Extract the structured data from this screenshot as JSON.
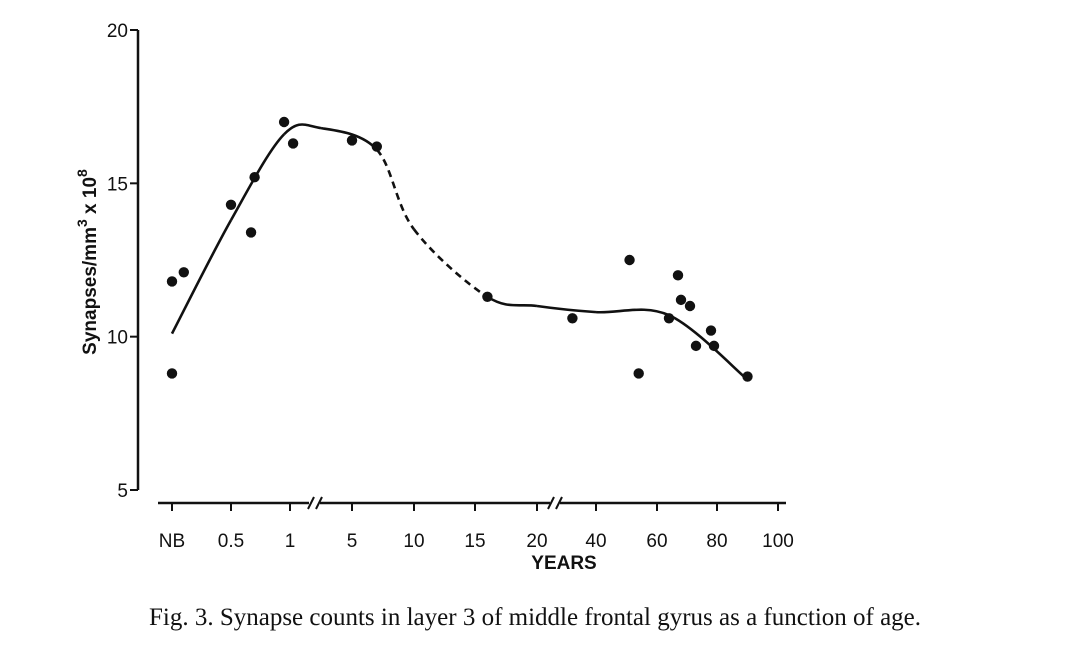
{
  "chart_data": {
    "type": "scatter",
    "ylabel_parts": {
      "base": "Synapses/mm",
      "exp1": "3",
      "mid": " x 10",
      "exp2": "8"
    },
    "xlabel": "YEARS",
    "ylim": [
      5,
      20
    ],
    "yticks": [
      5,
      10,
      15,
      20
    ],
    "x_axis_breaks": [
      "between 1 and 5",
      "between 20 and 40"
    ],
    "xticks": [
      "NB",
      "0.5",
      "1",
      "5",
      "10",
      "15",
      "20",
      "40",
      "60",
      "80",
      "100"
    ],
    "points": [
      {
        "x": "NB",
        "y": 8.8
      },
      {
        "x": "NB",
        "y": 11.8
      },
      {
        "x": 0.1,
        "y": 12.1
      },
      {
        "x": 0.5,
        "y": 14.3
      },
      {
        "x": 0.67,
        "y": 13.4
      },
      {
        "x": 0.7,
        "y": 15.2
      },
      {
        "x": 0.95,
        "y": 17.0
      },
      {
        "x": 1.2,
        "y": 16.3
      },
      {
        "x": 5,
        "y": 16.4
      },
      {
        "x": 7,
        "y": 16.2
      },
      {
        "x": 16,
        "y": 11.3
      },
      {
        "x": 32,
        "y": 10.6
      },
      {
        "x": 51,
        "y": 12.5
      },
      {
        "x": 54,
        "y": 8.8
      },
      {
        "x": 64,
        "y": 10.6
      },
      {
        "x": 67,
        "y": 12.0
      },
      {
        "x": 68,
        "y": 11.2
      },
      {
        "x": 71,
        "y": 11.0
      },
      {
        "x": 73,
        "y": 9.7
      },
      {
        "x": 78,
        "y": 10.2
      },
      {
        "x": 79,
        "y": 9.7
      },
      {
        "x": 90,
        "y": 8.7
      }
    ],
    "fit_curve": [
      {
        "x": "NB",
        "y": 10.1,
        "style": "solid"
      },
      {
        "x": 0.5,
        "y": 13.8,
        "style": "solid"
      },
      {
        "x": 0.95,
        "y": 16.6,
        "style": "solid"
      },
      {
        "x": 3,
        "y": 16.8,
        "style": "solid"
      },
      {
        "x": 7,
        "y": 16.1,
        "style": "solid"
      },
      {
        "x": 10,
        "y": 13.5,
        "style": "dashed"
      },
      {
        "x": 16,
        "y": 11.3,
        "style": "dashed"
      },
      {
        "x": 20,
        "y": 11.0,
        "style": "solid"
      },
      {
        "x": 40,
        "y": 10.8,
        "style": "solid"
      },
      {
        "x": 64,
        "y": 10.7,
        "style": "solid"
      },
      {
        "x": 90,
        "y": 8.6,
        "style": "solid"
      }
    ]
  },
  "caption": "Fig. 3. Synapse counts in layer 3 of middle frontal gyrus as a function of age."
}
